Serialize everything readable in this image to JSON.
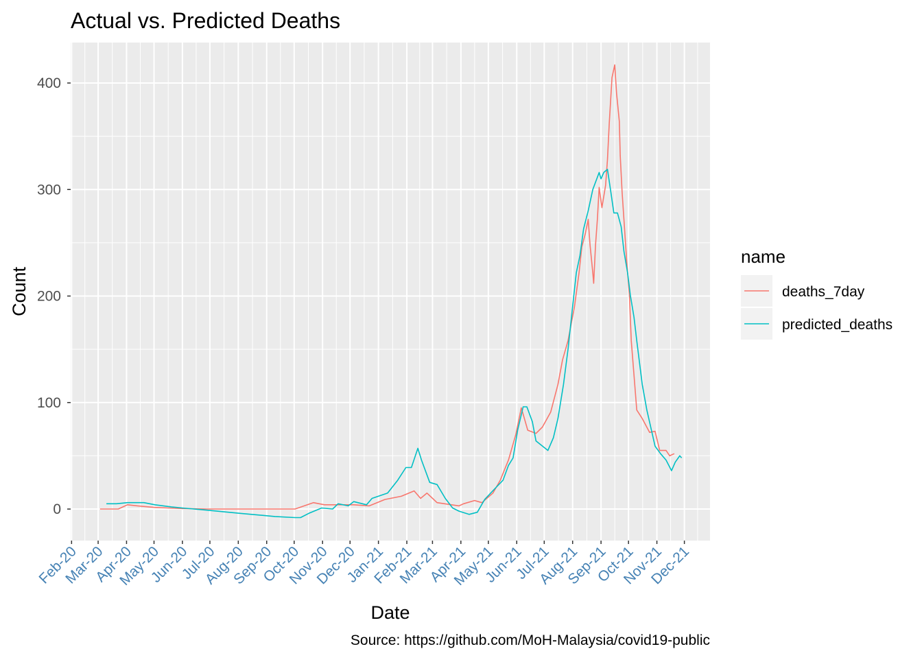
{
  "chart_data": {
    "type": "line",
    "title": "Actual vs. Predicted Deaths",
    "xlabel": "Date",
    "ylabel": "Count",
    "caption": "Source: https://github.com/MoH-Malaysia/covid19-public",
    "legend_title": "name",
    "legend_position": "right",
    "grid": true,
    "xlim": [
      "2020-01-31",
      "2021-12-29"
    ],
    "ylim": [
      -29.6,
      438
    ],
    "x_ticks": [
      {
        "date": "2020-02-01",
        "label": "Feb-20"
      },
      {
        "date": "2020-03-01",
        "label": "Mar-20"
      },
      {
        "date": "2020-04-01",
        "label": "Apr-20"
      },
      {
        "date": "2020-05-01",
        "label": "May-20"
      },
      {
        "date": "2020-06-01",
        "label": "Jun-20"
      },
      {
        "date": "2020-07-01",
        "label": "Jul-20"
      },
      {
        "date": "2020-08-01",
        "label": "Aug-20"
      },
      {
        "date": "2020-09-01",
        "label": "Sep-20"
      },
      {
        "date": "2020-10-01",
        "label": "Oct-20"
      },
      {
        "date": "2020-11-01",
        "label": "Nov-20"
      },
      {
        "date": "2020-12-01",
        "label": "Dec-20"
      },
      {
        "date": "2021-01-01",
        "label": "Jan-21"
      },
      {
        "date": "2021-02-01",
        "label": "Feb-21"
      },
      {
        "date": "2021-03-01",
        "label": "Mar-21"
      },
      {
        "date": "2021-04-01",
        "label": "Apr-21"
      },
      {
        "date": "2021-05-01",
        "label": "May-21"
      },
      {
        "date": "2021-06-01",
        "label": "Jun-21"
      },
      {
        "date": "2021-07-01",
        "label": "Jul-21"
      },
      {
        "date": "2021-08-01",
        "label": "Aug-21"
      },
      {
        "date": "2021-09-01",
        "label": "Sep-21"
      },
      {
        "date": "2021-10-01",
        "label": "Oct-21"
      },
      {
        "date": "2021-11-01",
        "label": "Nov-21"
      },
      {
        "date": "2021-12-01",
        "label": "Dec-21"
      }
    ],
    "y_ticks": [
      0,
      100,
      200,
      300,
      400
    ],
    "colors": {
      "x_tick_labels": "#4682B4",
      "panel": "#EBEBEB"
    },
    "series": [
      {
        "name": "deaths_7day",
        "color": "#F8766D",
        "points": [
          [
            "2020-03-03",
            0
          ],
          [
            "2020-03-23",
            0
          ],
          [
            "2020-04-02",
            4
          ],
          [
            "2020-04-13",
            3
          ],
          [
            "2020-05-02",
            1.5
          ],
          [
            "2020-06-01",
            0.5
          ],
          [
            "2020-06-27",
            0
          ],
          [
            "2020-10-02",
            0
          ],
          [
            "2020-10-22",
            6
          ],
          [
            "2020-11-03",
            4
          ],
          [
            "2020-12-05",
            4
          ],
          [
            "2020-12-22",
            3
          ],
          [
            "2021-01-08",
            9
          ],
          [
            "2021-01-26",
            12
          ],
          [
            "2021-02-09",
            17
          ],
          [
            "2021-02-16",
            10
          ],
          [
            "2021-02-23",
            15
          ],
          [
            "2021-03-06",
            6
          ],
          [
            "2021-03-30",
            3
          ],
          [
            "2021-04-04",
            5
          ],
          [
            "2021-04-16",
            8
          ],
          [
            "2021-04-24",
            6
          ],
          [
            "2021-05-06",
            15
          ],
          [
            "2021-05-14",
            27
          ],
          [
            "2021-05-23",
            46
          ],
          [
            "2021-05-31",
            70
          ],
          [
            "2021-06-06",
            95
          ],
          [
            "2021-06-13",
            74
          ],
          [
            "2021-06-22",
            71
          ],
          [
            "2021-06-29",
            77
          ],
          [
            "2021-07-08",
            91
          ],
          [
            "2021-07-16",
            117
          ],
          [
            "2021-07-21",
            140
          ],
          [
            "2021-07-27",
            158
          ],
          [
            "2021-08-03",
            190
          ],
          [
            "2021-08-08",
            222
          ],
          [
            "2021-08-11",
            246
          ],
          [
            "2021-08-15",
            259
          ],
          [
            "2021-08-18",
            272
          ],
          [
            "2021-08-20",
            248
          ],
          [
            "2021-08-23",
            222
          ],
          [
            "2021-08-24",
            212
          ],
          [
            "2021-08-26",
            248
          ],
          [
            "2021-08-28",
            272
          ],
          [
            "2021-08-30",
            302
          ],
          [
            "2021-09-02",
            283
          ],
          [
            "2021-09-06",
            304
          ],
          [
            "2021-09-08",
            328
          ],
          [
            "2021-09-10",
            362
          ],
          [
            "2021-09-13",
            405
          ],
          [
            "2021-09-16",
            417
          ],
          [
            "2021-09-18",
            390
          ],
          [
            "2021-09-21",
            364
          ],
          [
            "2021-09-22",
            332
          ],
          [
            "2021-09-24",
            298
          ],
          [
            "2021-09-26",
            272
          ],
          [
            "2021-09-29",
            233
          ],
          [
            "2021-10-02",
            201
          ],
          [
            "2021-10-04",
            158
          ],
          [
            "2021-10-10",
            93
          ],
          [
            "2021-10-16",
            85
          ],
          [
            "2021-10-24",
            72
          ],
          [
            "2021-10-30",
            73
          ],
          [
            "2021-11-04",
            55
          ],
          [
            "2021-11-11",
            55
          ],
          [
            "2021-11-15",
            50
          ],
          [
            "2021-11-20",
            52
          ]
        ]
      },
      {
        "name": "predicted_deaths",
        "color": "#00BFC4",
        "points": [
          [
            "2020-03-10",
            5
          ],
          [
            "2020-03-21",
            5
          ],
          [
            "2020-04-02",
            6
          ],
          [
            "2020-04-20",
            6
          ],
          [
            "2020-05-02",
            4
          ],
          [
            "2020-05-20",
            2
          ],
          [
            "2020-06-01",
            1
          ],
          [
            "2020-06-27",
            -1
          ],
          [
            "2020-08-03",
            -4
          ],
          [
            "2020-09-10",
            -7
          ],
          [
            "2020-10-02",
            -8
          ],
          [
            "2020-10-08",
            -8
          ],
          [
            "2020-10-17",
            -4
          ],
          [
            "2020-10-31",
            1
          ],
          [
            "2020-11-12",
            0
          ],
          [
            "2020-11-18",
            5
          ],
          [
            "2020-11-29",
            3
          ],
          [
            "2020-12-05",
            7
          ],
          [
            "2020-12-19",
            4
          ],
          [
            "2020-12-25",
            10
          ],
          [
            "2021-01-11",
            15
          ],
          [
            "2021-01-22",
            27
          ],
          [
            "2021-01-31",
            39
          ],
          [
            "2021-02-06",
            39
          ],
          [
            "2021-02-13",
            57
          ],
          [
            "2021-02-17",
            46
          ],
          [
            "2021-02-26",
            25
          ],
          [
            "2021-03-06",
            23
          ],
          [
            "2021-03-15",
            10
          ],
          [
            "2021-03-23",
            1
          ],
          [
            "2021-03-30",
            -2
          ],
          [
            "2021-04-10",
            -5
          ],
          [
            "2021-04-19",
            -3
          ],
          [
            "2021-04-27",
            9
          ],
          [
            "2021-05-08",
            19
          ],
          [
            "2021-05-17",
            27
          ],
          [
            "2021-05-23",
            41
          ],
          [
            "2021-05-28",
            48
          ],
          [
            "2021-06-02",
            74
          ],
          [
            "2021-06-08",
            96
          ],
          [
            "2021-06-12",
            96
          ],
          [
            "2021-06-18",
            82
          ],
          [
            "2021-06-22",
            64
          ],
          [
            "2021-07-05",
            55
          ],
          [
            "2021-07-11",
            67
          ],
          [
            "2021-07-16",
            85
          ],
          [
            "2021-07-22",
            117
          ],
          [
            "2021-07-27",
            150
          ],
          [
            "2021-08-01",
            190
          ],
          [
            "2021-08-05",
            222
          ],
          [
            "2021-08-09",
            238
          ],
          [
            "2021-08-13",
            263
          ],
          [
            "2021-08-18",
            280
          ],
          [
            "2021-08-23",
            300
          ],
          [
            "2021-08-30",
            316
          ],
          [
            "2021-09-01",
            310
          ],
          [
            "2021-09-04",
            316
          ],
          [
            "2021-09-08",
            319
          ],
          [
            "2021-09-12",
            296
          ],
          [
            "2021-09-15",
            278
          ],
          [
            "2021-09-19",
            278
          ],
          [
            "2021-09-23",
            265
          ],
          [
            "2021-09-26",
            242
          ],
          [
            "2021-09-30",
            222
          ],
          [
            "2021-10-03",
            201
          ],
          [
            "2021-10-07",
            180
          ],
          [
            "2021-10-10",
            158
          ],
          [
            "2021-10-16",
            117
          ],
          [
            "2021-10-21",
            93
          ],
          [
            "2021-10-30",
            59
          ],
          [
            "2021-11-05",
            52
          ],
          [
            "2021-11-11",
            46
          ],
          [
            "2021-11-17",
            36
          ],
          [
            "2021-11-21",
            44
          ],
          [
            "2021-11-26",
            50
          ],
          [
            "2021-11-28",
            48
          ]
        ]
      }
    ]
  }
}
